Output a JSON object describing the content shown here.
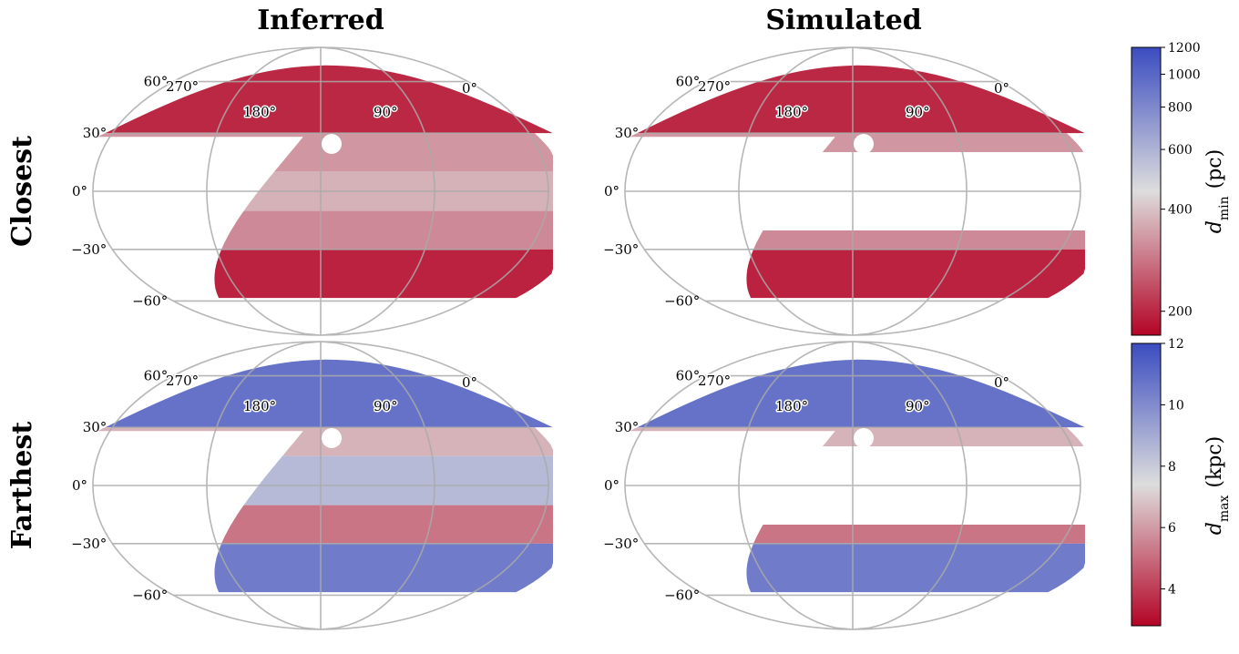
{
  "chart_data": {
    "type": "heatmap",
    "projection": "mollweide",
    "columns": [
      "Inferred",
      "Simulated"
    ],
    "rows": [
      {
        "title": "Closest",
        "colorbar": {
          "label_base": "d",
          "label_sub": "min",
          "label_unit": "(pc)",
          "scale": "log",
          "range": [
            170,
            1200
          ],
          "ticks": [
            200,
            400,
            600,
            800,
            1000,
            1200
          ],
          "tick_labels": [
            "200",
            "400",
            "600",
            "800",
            "1000",
            "1200"
          ]
        },
        "bands": [
          {
            "b": [
              30,
              90
            ],
            "value": 200
          },
          {
            "b": [
              10,
              30
            ],
            "value": 330
          },
          {
            "b": [
              -10,
              10
            ],
            "value": 370
          },
          {
            "b": [
              -30,
              -10
            ],
            "value": 310
          },
          {
            "b": [
              -90,
              -30
            ],
            "value": 195
          }
        ]
      },
      {
        "title": "Farthest",
        "colorbar": {
          "label_base": "d",
          "label_sub": "max",
          "label_unit": "(kpc)",
          "scale": "linear",
          "range": [
            2.8,
            12
          ],
          "ticks": [
            4,
            6,
            8,
            10,
            12
          ],
          "tick_labels": [
            "4",
            "6",
            "8",
            "10",
            "12"
          ]
        },
        "bands": [
          {
            "b": [
              30,
              90
            ],
            "value": 10.8
          },
          {
            "b": [
              15,
              30
            ],
            "value": 6.5
          },
          {
            "b": [
              -10,
              15
            ],
            "value": 8.5
          },
          {
            "b": [
              -30,
              -10
            ],
            "value": 5.2
          },
          {
            "b": [
              -90,
              -30
            ],
            "value": 10.5
          }
        ]
      }
    ],
    "lat_ticks": [
      60,
      30,
      0,
      -30,
      -60
    ],
    "lat_tick_labels": [
      "60°",
      "30°",
      "0°",
      "−30°",
      "−60°"
    ],
    "lon_labels": [
      {
        "text": "270°",
        "lon": 270
      },
      {
        "text": "180°",
        "lon": 180
      },
      {
        "text": "90°",
        "lon": 90
      },
      {
        "text": "0°",
        "lon": 0
      }
    ],
    "coverage": {
      "inferred_dec_range": [
        -60,
        90
      ],
      "simulated_dec_range": [
        -60,
        90
      ],
      "simulated_gap_b": [
        -20,
        20
      ]
    },
    "colors": {
      "red": "#b40426",
      "mid": "#dddddd",
      "blue": "#3b4cc0",
      "grid": "#aaaaaa"
    }
  }
}
